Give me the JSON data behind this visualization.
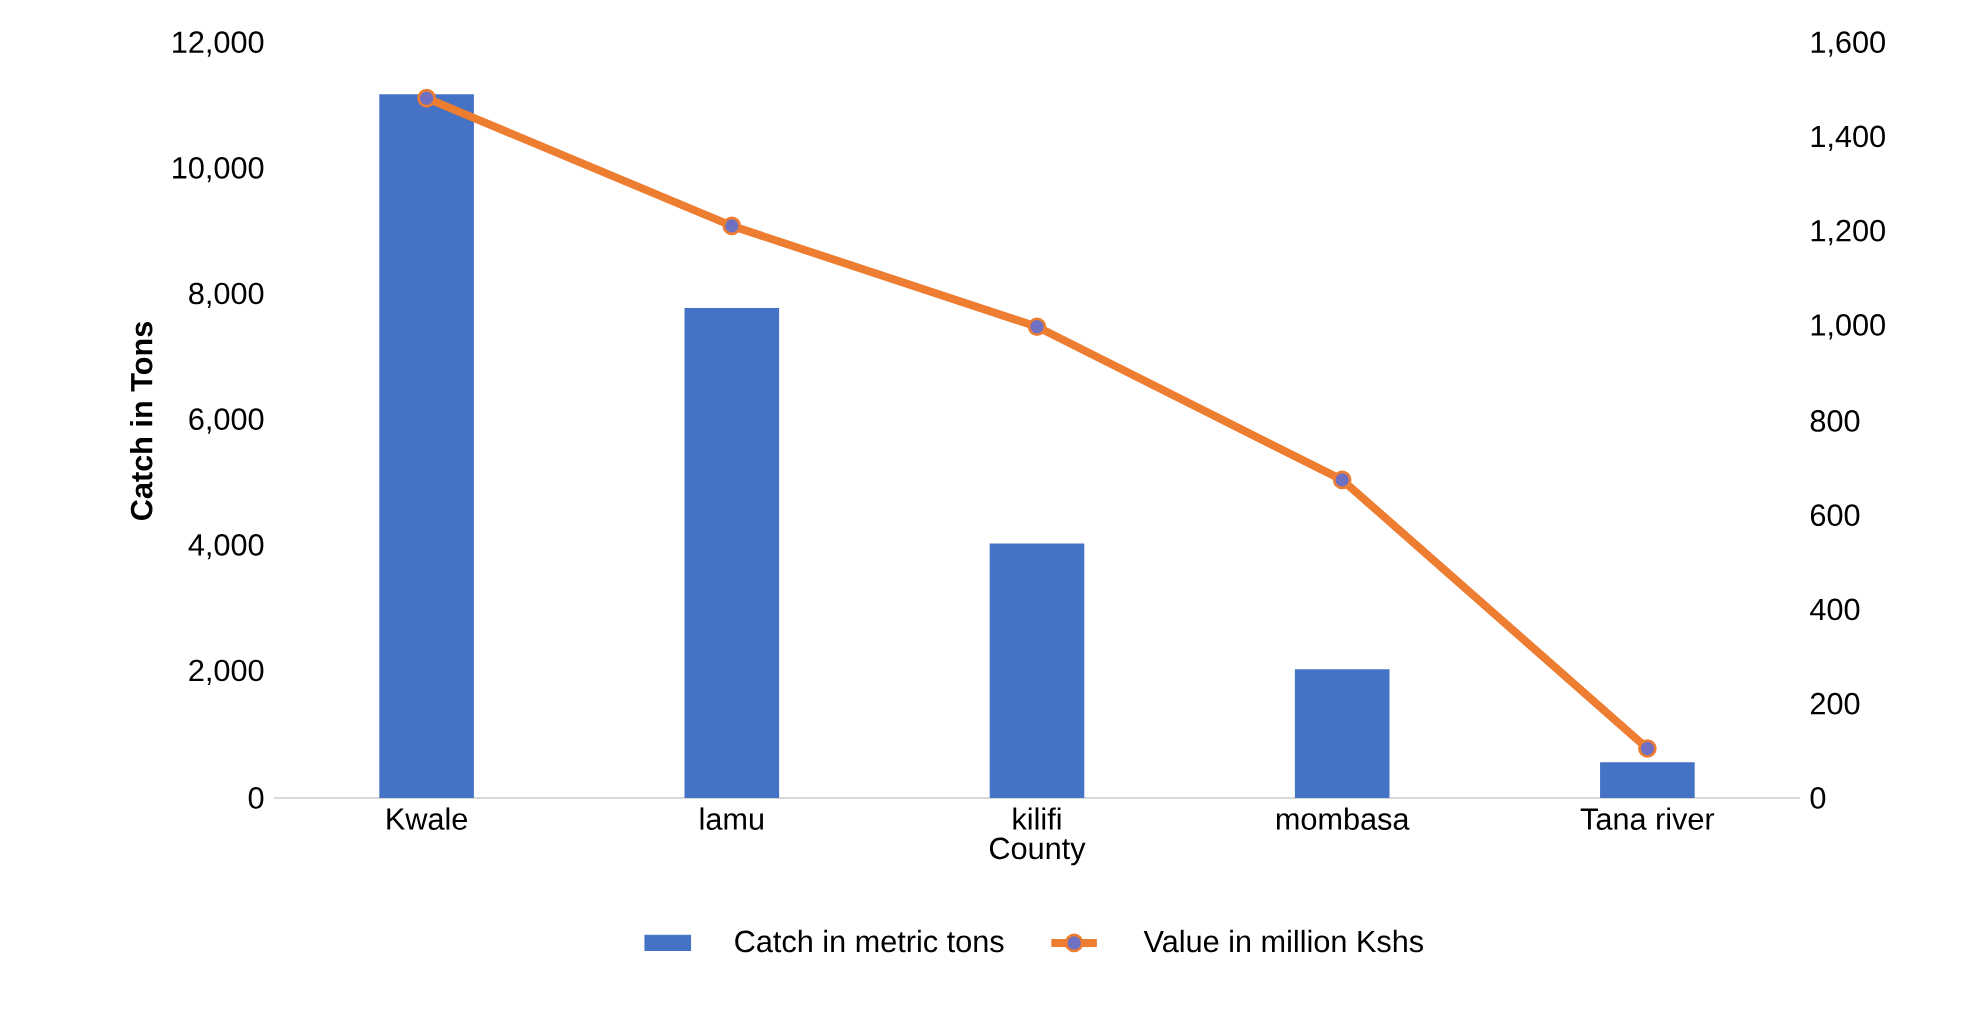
{
  "chart_data": {
    "type": "bar",
    "xlabel": "County",
    "ylabel": "Catch in Tons",
    "categories": [
      "Kwale",
      "lamu",
      "kilifi",
      "mombasa",
      "Tana river"
    ],
    "series": [
      {
        "name": "Catch in metric tons",
        "color": "#4472c4",
        "values": [
          11200,
          7800,
          4050,
          2050,
          570
        ]
      },
      {
        "name": "Value in million Kshs",
        "type": "line",
        "axis": "y2",
        "color": "#ed7d31",
        "values": [
          1485,
          1214,
          1000,
          675,
          105
        ]
      }
    ],
    "ylim": [
      0,
      12000
    ],
    "yticks": [
      0,
      {
        "value": 2000,
        "label": "2,000"
      },
      {
        "value": 4000,
        "label": "4,000"
      },
      {
        "value": 6000,
        "label": "6,000"
      },
      {
        "value": 8000,
        "label": "8,000"
      },
      {
        "value": 10000,
        "label": "10,000"
      },
      {
        "value": 12000,
        "label": "12,000"
      }
    ],
    "y2lim": [
      0,
      1600
    ],
    "y2ticks": [
      0,
      200,
      400,
      600,
      800,
      {
        "value": 1000,
        "label": "1,000"
      },
      {
        "value": 1200,
        "label": "1,200"
      },
      {
        "value": 1400,
        "label": "1,400"
      },
      {
        "value": 1600,
        "label": "1,600"
      }
    ],
    "legend": "bottom",
    "marker": "circle",
    "grid": false
  }
}
